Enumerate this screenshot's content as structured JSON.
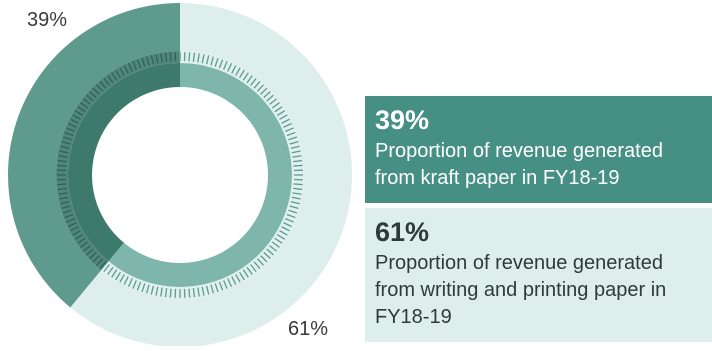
{
  "chart_data": {
    "type": "pie",
    "style": "donut",
    "slices": [
      {
        "label": "39%",
        "value": 39,
        "legend_value": "39%",
        "legend_text": "Proportion of revenue generated from kraft paper in FY18-19",
        "color": "#5f9b8d",
        "inner_color": "#3d7a6c",
        "legend_bg": "#468f84"
      },
      {
        "label": "61%",
        "value": 61,
        "legend_value": "61%",
        "legend_text": "Proportion of revenue generated from writing and printing paper in FY18-19",
        "color": "#ddeeec",
        "inner_color": "#7fb6ab",
        "legend_bg": "#ddeeec"
      }
    ]
  }
}
